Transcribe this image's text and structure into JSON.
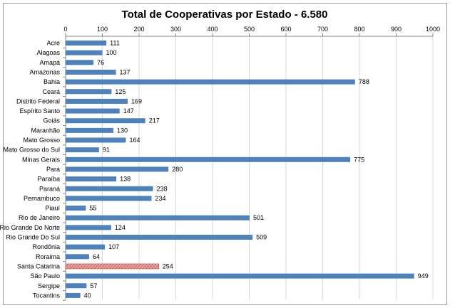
{
  "chart_data": {
    "type": "bar",
    "orientation": "horizontal",
    "title": "Total de Cooperativas por Estado - 6.580",
    "xlim": [
      0,
      1000
    ],
    "x_ticks": [
      0,
      100,
      200,
      300,
      400,
      500,
      600,
      700,
      800,
      900,
      1000
    ],
    "x_axis_position": "top",
    "grid": true,
    "legend": "none",
    "bar_color": "#4f81bd",
    "highlight_color": "#c0504d",
    "highlight_pattern": "hatched",
    "categories": [
      "Acre",
      "Alagoas",
      "Amapá",
      "Amazonas",
      "Bahia",
      "Ceará",
      "Distrito Federal",
      "Espírito Santo",
      "Goiás",
      "Maranhão",
      "Mato Grosso",
      "Mato Grosso do Sul",
      "Minas Gerais",
      "Pará",
      "Paraíba",
      "Paraná",
      "Pernambuco",
      "Piauí",
      "Rio de Janeiro",
      "Rio Grande Do Norte",
      "Rio Grande Do Sul",
      "Rondônia",
      "Roraima",
      "Santa Catarina",
      "São Paulo",
      "Sergipe",
      "Tocantins"
    ],
    "values": [
      111,
      100,
      76,
      137,
      788,
      125,
      169,
      147,
      217,
      130,
      164,
      91,
      775,
      280,
      138,
      238,
      234,
      55,
      501,
      124,
      509,
      107,
      64,
      254,
      949,
      57,
      40
    ],
    "highlighted_category": "Santa Catarina"
  }
}
